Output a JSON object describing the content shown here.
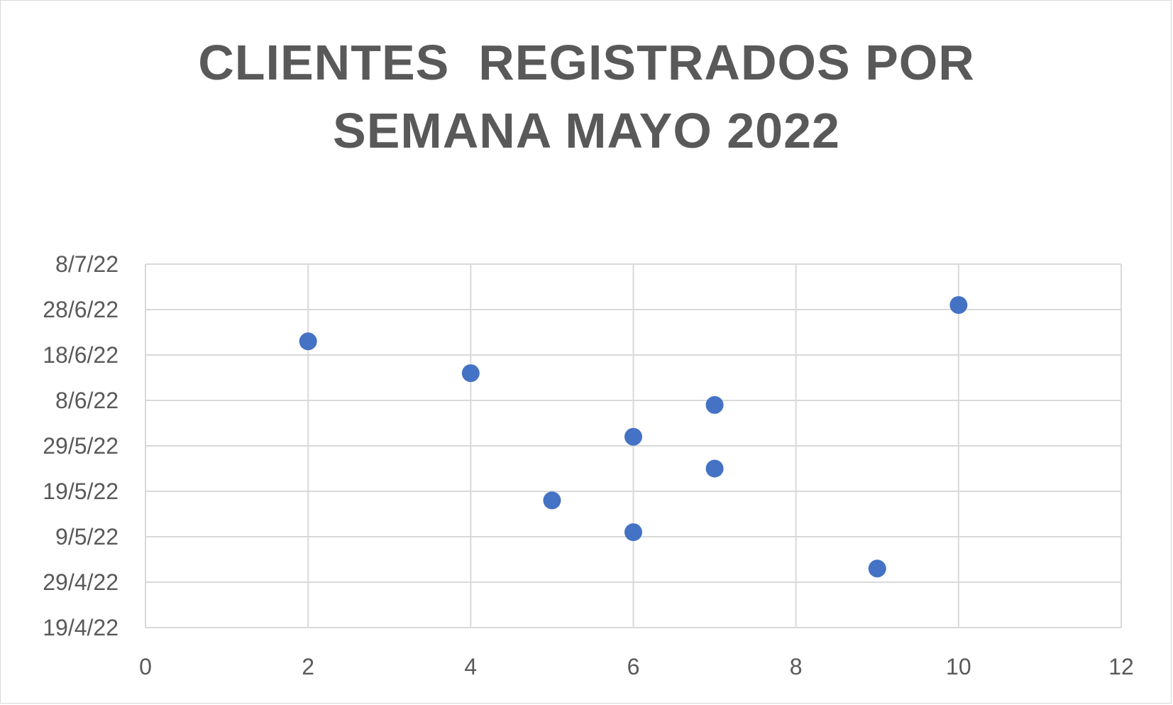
{
  "chart_data": {
    "type": "scatter",
    "title_lines": [
      "CLIENTES  REGISTRADOS POR",
      "SEMANA MAYO 2022"
    ],
    "xlabel": "",
    "ylabel": "",
    "xlim": [
      0,
      12
    ],
    "x_ticks": [
      "0",
      "2",
      "4",
      "6",
      "8",
      "10",
      "12"
    ],
    "x_tick_values": [
      0,
      2,
      4,
      6,
      8,
      10,
      12
    ],
    "ylim": [
      "2022-04-19",
      "2022-07-08"
    ],
    "y_ticks": [
      "19/4/22",
      "29/4/22",
      "9/5/22",
      "19/5/22",
      "29/5/22",
      "8/6/22",
      "18/6/22",
      "28/6/22",
      "8/7/22"
    ],
    "y_tick_values": [
      "2022-04-19",
      "2022-04-29",
      "2022-05-09",
      "2022-05-19",
      "2022-05-29",
      "2022-06-08",
      "2022-06-18",
      "2022-06-28",
      "2022-07-08"
    ],
    "grid": true,
    "marker_color": "#4472C4",
    "points": [
      {
        "x": 9,
        "y": "2022-05-02"
      },
      {
        "x": 6,
        "y": "2022-05-10"
      },
      {
        "x": 5,
        "y": "2022-05-17"
      },
      {
        "x": 7,
        "y": "2022-05-24"
      },
      {
        "x": 6,
        "y": "2022-05-31"
      },
      {
        "x": 7,
        "y": "2022-06-07"
      },
      {
        "x": 4,
        "y": "2022-06-14"
      },
      {
        "x": 2,
        "y": "2022-06-21"
      },
      {
        "x": 10,
        "y": "2022-06-29"
      }
    ]
  }
}
